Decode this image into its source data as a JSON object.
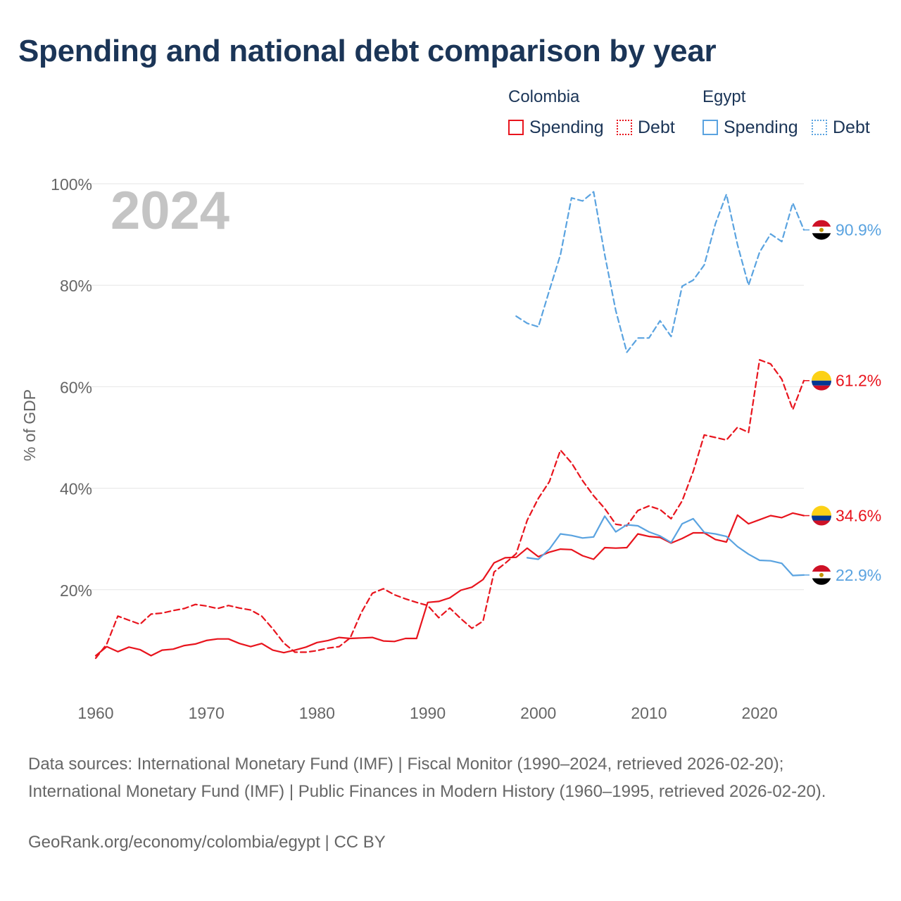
{
  "title": "Spending and national debt comparison by year",
  "legend": {
    "groups": [
      {
        "country": "Colombia",
        "color": "#e8141d",
        "items": [
          "Spending",
          "Debt"
        ]
      },
      {
        "country": "Egypt",
        "color": "#5aa3e0",
        "items": [
          "Spending",
          "Debt"
        ]
      }
    ]
  },
  "footer": {
    "sources": "Data sources: International Monetary Fund (IMF) | Fiscal Monitor (1990–2024, retrieved 2026-02-20); International Monetary Fund (IMF) | Public Finances in Modern History (1960–1995, retrieved 2026-02-20).",
    "credit": "GeoRank.org/economy/colombia/egypt | CC BY"
  },
  "chart_data": {
    "type": "line",
    "title": "Spending and national debt comparison by year",
    "year_watermark": "2024",
    "ylabel": "% of GDP",
    "xlabel": "",
    "ylim": [
      0,
      100
    ],
    "xlim": [
      1960,
      2024
    ],
    "yticks": [
      20,
      40,
      60,
      80,
      100
    ],
    "ytick_labels": [
      "20%",
      "40%",
      "60%",
      "80%",
      "100%"
    ],
    "xticks": [
      1960,
      1970,
      1980,
      1990,
      2000,
      2010,
      2020
    ],
    "grid": true,
    "legend_position": "top-right",
    "series": [
      {
        "name": "Colombia Spending",
        "country": "Colombia",
        "metric": "Spending",
        "style": "solid",
        "color": "#e8141d",
        "end_label": "34.6%",
        "x": [
          1960,
          1961,
          1962,
          1963,
          1964,
          1965,
          1966,
          1967,
          1968,
          1969,
          1970,
          1971,
          1972,
          1973,
          1974,
          1975,
          1976,
          1977,
          1978,
          1979,
          1980,
          1981,
          1982,
          1983,
          1984,
          1985,
          1986,
          1987,
          1988,
          1989,
          1990,
          1991,
          1992,
          1993,
          1994,
          1995,
          1996,
          1997,
          1998,
          1999,
          2000,
          2001,
          2002,
          2003,
          2004,
          2005,
          2006,
          2007,
          2008,
          2009,
          2010,
          2011,
          2012,
          2013,
          2014,
          2015,
          2016,
          2017,
          2018,
          2019,
          2020,
          2021,
          2022,
          2023,
          2024
        ],
        "values": [
          7.0,
          8.8,
          7.8,
          8.7,
          8.2,
          7.0,
          8.1,
          8.3,
          9.0,
          9.3,
          10.0,
          10.3,
          10.3,
          9.4,
          8.8,
          9.4,
          8.1,
          7.6,
          8.1,
          8.7,
          9.6,
          10.0,
          10.6,
          10.4,
          10.5,
          10.6,
          9.9,
          9.8,
          10.4,
          10.4,
          17.5,
          17.7,
          18.4,
          19.9,
          20.5,
          22.0,
          25.3,
          26.3,
          26.4,
          28.2,
          26.5,
          27.4,
          28.0,
          27.9,
          26.7,
          26.0,
          28.3,
          28.2,
          28.3,
          31.0,
          30.5,
          30.3,
          29.2,
          30.1,
          31.2,
          31.2,
          29.9,
          29.4,
          34.7,
          33.0,
          33.8,
          34.6,
          34.2,
          35.1,
          34.6
        ]
      },
      {
        "name": "Colombia Debt",
        "country": "Colombia",
        "metric": "Debt",
        "style": "dashed",
        "color": "#e8141d",
        "end_label": "61.2%",
        "x": [
          1960,
          1961,
          1962,
          1963,
          1964,
          1965,
          1966,
          1967,
          1968,
          1969,
          1970,
          1971,
          1972,
          1973,
          1974,
          1975,
          1976,
          1977,
          1978,
          1979,
          1980,
          1981,
          1982,
          1983,
          1984,
          1985,
          1986,
          1987,
          1988,
          1989,
          1990,
          1991,
          1992,
          1993,
          1994,
          1995,
          1996,
          1997,
          1998,
          1999,
          2000,
          2001,
          2002,
          2003,
          2004,
          2005,
          2006,
          2007,
          2008,
          2009,
          2010,
          2011,
          2012,
          2013,
          2014,
          2015,
          2016,
          2017,
          2018,
          2019,
          2020,
          2021,
          2022,
          2023,
          2024
        ],
        "values": [
          6.5,
          9.3,
          14.8,
          14.0,
          13.2,
          15.2,
          15.4,
          15.9,
          16.3,
          17.1,
          16.8,
          16.3,
          16.9,
          16.4,
          16.0,
          14.8,
          12.3,
          9.5,
          7.7,
          7.7,
          8.0,
          8.5,
          8.8,
          10.5,
          15.5,
          19.3,
          20.2,
          19.0,
          18.2,
          17.5,
          16.9,
          14.5,
          16.4,
          14.3,
          12.4,
          13.8,
          23.5,
          25.2,
          27.1,
          33.7,
          38.0,
          41.3,
          47.5,
          45.0,
          41.5,
          38.5,
          36.0,
          32.9,
          32.6,
          35.6,
          36.5,
          35.8,
          34.0,
          37.5,
          43.3,
          50.5,
          50.0,
          49.5,
          52.0,
          51.0,
          65.3,
          64.5,
          61.5,
          55.5,
          61.2
        ]
      },
      {
        "name": "Egypt Spending",
        "country": "Egypt",
        "metric": "Spending",
        "style": "solid",
        "color": "#5aa3e0",
        "end_label": "22.9%",
        "x": [
          1999,
          2000,
          2001,
          2002,
          2003,
          2004,
          2005,
          2006,
          2007,
          2008,
          2009,
          2010,
          2011,
          2012,
          2013,
          2014,
          2015,
          2016,
          2017,
          2018,
          2019,
          2020,
          2021,
          2022,
          2023,
          2024
        ],
        "values": [
          26.3,
          26.0,
          28.0,
          31.0,
          30.7,
          30.2,
          30.4,
          34.5,
          31.4,
          32.8,
          32.6,
          31.4,
          30.6,
          29.3,
          33.0,
          34.0,
          31.3,
          31.0,
          30.5,
          28.5,
          27.0,
          25.8,
          25.7,
          25.2,
          22.8,
          22.9
        ]
      },
      {
        "name": "Egypt Debt",
        "country": "Egypt",
        "metric": "Debt",
        "style": "dashed",
        "color": "#5aa3e0",
        "end_label": "90.9%",
        "x": [
          1998,
          1999,
          2000,
          2001,
          2002,
          2003,
          2004,
          2005,
          2006,
          2007,
          2008,
          2009,
          2010,
          2011,
          2012,
          2013,
          2014,
          2015,
          2016,
          2017,
          2018,
          2019,
          2020,
          2021,
          2022,
          2023,
          2024
        ],
        "values": [
          73.9,
          72.5,
          71.8,
          79.0,
          86.0,
          97.2,
          96.6,
          98.4,
          86.0,
          75.0,
          66.8,
          69.6,
          69.6,
          73.0,
          69.9,
          79.8,
          81.0,
          84.0,
          92.1,
          97.9,
          88.0,
          80.0,
          86.5,
          90.1,
          88.6,
          96.2,
          90.9
        ]
      }
    ]
  }
}
